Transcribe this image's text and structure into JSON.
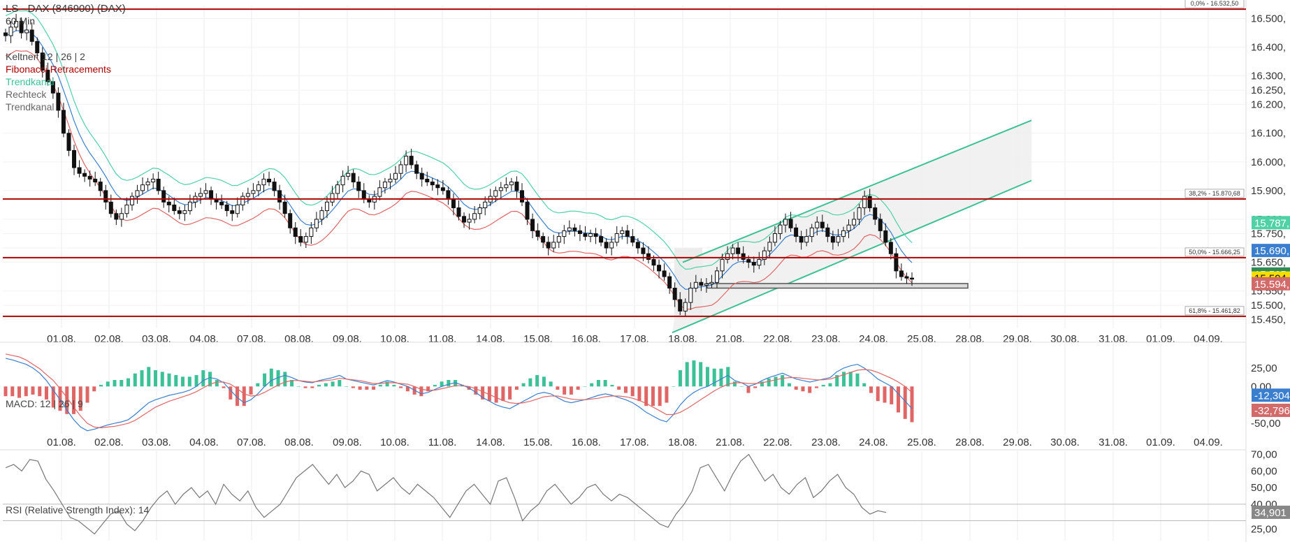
{
  "chart_data": [
    {
      "type": "candlestick",
      "title": "LS - DAX (846900) (DAX)",
      "interval": "60 Min",
      "ylim": [
        15420,
        16545
      ],
      "y_ticks": [
        "16.500,",
        "16.400,",
        "16.300,",
        "16.250,",
        "16.200,",
        "16.100,",
        "16.000,",
        "15.900,",
        "15.800,",
        "15.750,",
        "15.700,",
        "15.650,",
        "15.550,",
        "15.500,",
        "15.450,"
      ],
      "y_tick_values": [
        16500,
        16400,
        16300,
        16250,
        16200,
        16100,
        16000,
        15900,
        15800,
        15750,
        15700,
        15650,
        15550,
        15500,
        15450
      ],
      "x_ticks": [
        "01.08.",
        "02.08.",
        "03.08.",
        "04.08.",
        "07.08.",
        "08.08.",
        "09.08.",
        "10.08.",
        "11.08.",
        "14.08.",
        "15.08.",
        "16.08.",
        "17.08.",
        "18.08.",
        "21.08.",
        "22.08.",
        "23.08.",
        "24.08.",
        "25.08.",
        "28.08.",
        "29.08.",
        "30.08.",
        "31.08.",
        "01.09.",
        "04.09."
      ],
      "legend": [
        {
          "label": "Keltner: 12 | 26 | 2",
          "color": "#444444"
        },
        {
          "label": "Fibonacci Retracements",
          "color": "#b00000"
        },
        {
          "label": "Trendkanal",
          "color": "#3cc196"
        },
        {
          "label": "Rechteck",
          "color": "#666666"
        },
        {
          "label": "Trendkanal",
          "color": "#666666"
        }
      ],
      "fibonacci": [
        {
          "label": "0,0% - 16.532,50",
          "value": 16532.5
        },
        {
          "label": "38,2% - 15.870,68",
          "value": 15870.68
        },
        {
          "label": "50,0% - 15.666,25",
          "value": 15666.25
        },
        {
          "label": "61,8% - 15.461,82",
          "value": 15461.82
        }
      ],
      "price_badges": [
        {
          "label": "15.787,",
          "value": 15787,
          "color": "#4fd1a5"
        },
        {
          "label": "15.690,",
          "value": 15690,
          "color": "#3a7fcf"
        },
        {
          "label": "15.595,",
          "value": 15608,
          "color": "#2e8b57"
        },
        {
          "label": "15.594,",
          "value": 15594,
          "color": "#f5dd00"
        },
        {
          "label": "15.594,",
          "value": 15574,
          "color": "#d36a6a"
        }
      ],
      "trend_channel": {
        "upper": [
          [
            "18.08.",
            15650
          ],
          [
            "29.08.",
            16145
          ]
        ],
        "lower": [
          [
            "18.08.",
            15405
          ],
          [
            "29.08.",
            15935
          ]
        ]
      },
      "rectangle": {
        "from": "18.08.",
        "to": "28.08.",
        "y_top": 15576,
        "y_bottom": 15560
      },
      "close_series": [
        16440,
        16470,
        16490,
        16450,
        16460,
        16420,
        16380,
        16320,
        16280,
        16240,
        16180,
        16100,
        16040,
        15980,
        15960,
        15950,
        15940,
        15930,
        15900,
        15860,
        15820,
        15800,
        15820,
        15850,
        15880,
        15900,
        15920,
        15930,
        15940,
        15900,
        15860,
        15850,
        15830,
        15820,
        15830,
        15860,
        15880,
        15890,
        15900,
        15870,
        15860,
        15850,
        15830,
        15820,
        15850,
        15880,
        15890,
        15900,
        15920,
        15940,
        15930,
        15900,
        15860,
        15820,
        15770,
        15740,
        15720,
        15740,
        15770,
        15800,
        15830,
        15860,
        15890,
        15920,
        15950,
        15960,
        15930,
        15900,
        15870,
        15860,
        15880,
        15910,
        15930,
        15940,
        15960,
        15990,
        16020,
        15990,
        15960,
        15940,
        15930,
        15920,
        15910,
        15900,
        15870,
        15840,
        15810,
        15790,
        15800,
        15820,
        15840,
        15860,
        15880,
        15900,
        15910,
        15920,
        15930,
        15900,
        15860,
        15800,
        15760,
        15740,
        15720,
        15700,
        15720,
        15740,
        15760,
        15770,
        15760,
        15750,
        15740,
        15750,
        15740,
        15720,
        15700,
        15720,
        15750,
        15760,
        15740,
        15720,
        15700,
        15680,
        15660,
        15640,
        15620,
        15600,
        15560,
        15520,
        15480,
        15510,
        15560,
        15580,
        15570,
        15575,
        15580,
        15620,
        15660,
        15680,
        15700,
        15680,
        15660,
        15650,
        15640,
        15660,
        15690,
        15720,
        15750,
        15780,
        15800,
        15770,
        15740,
        15720,
        15740,
        15770,
        15790,
        15770,
        15740,
        15720,
        15740,
        15760,
        15780,
        15800,
        15840,
        15880,
        15840,
        15800,
        15760,
        15720,
        15680,
        15620,
        15600,
        15595,
        15594
      ],
      "candle_color": "#111111"
    },
    {
      "type": "line",
      "title": "MACD: 12 | 26 | 9",
      "ylim": [
        -65,
        58
      ],
      "y_ticks": [
        "25,00",
        "0,00",
        "-50,00"
      ],
      "y_tick_values": [
        25,
        0,
        -50
      ],
      "x_ticks": [
        "01.08.",
        "02.08.",
        "03.08.",
        "04.08.",
        "07.08.",
        "08.08.",
        "09.08.",
        "10.08.",
        "11.08.",
        "14.08.",
        "15.08.",
        "16.08.",
        "17.08.",
        "18.08.",
        "21.08.",
        "22.08.",
        "23.08.",
        "24.08.",
        "25.08.",
        "28.08.",
        "29.08.",
        "30.08.",
        "31.08.",
        "01.09.",
        "04.09."
      ],
      "badges": [
        {
          "label": "-12,304",
          "value": -12.3,
          "color": "#3a7fcf"
        },
        {
          "label": "-32,796",
          "value": -32.8,
          "color": "#d36a6a"
        }
      ],
      "macd_series": [
        38,
        36,
        33,
        30,
        25,
        18,
        8,
        -5,
        -18,
        -32,
        -45,
        -55,
        -60,
        -58,
        -55,
        -52,
        -50,
        -48,
        -45,
        -38,
        -30,
        -22,
        -18,
        -15,
        -12,
        -10,
        -8,
        -5,
        0,
        8,
        12,
        10,
        5,
        -5,
        -15,
        -22,
        -18,
        -10,
        0,
        8,
        12,
        15,
        12,
        8,
        6,
        5,
        8,
        10,
        12,
        15,
        10,
        8,
        6,
        4,
        2,
        5,
        8,
        6,
        3,
        0,
        -5,
        -10,
        -8,
        -4,
        0,
        3,
        5,
        2,
        -2,
        -8,
        -15,
        -20,
        -25,
        -28,
        -30,
        -25,
        -20,
        -15,
        -10,
        -8,
        -10,
        -15,
        -20,
        -22,
        -20,
        -18,
        -15,
        -12,
        -10,
        -12,
        -15,
        -18,
        -22,
        -28,
        -35,
        -40,
        -45,
        -48,
        -38,
        -25,
        -15,
        -8,
        -3,
        0,
        5,
        10,
        15,
        8,
        5,
        0,
        3,
        8,
        12,
        15,
        18,
        14,
        10,
        8,
        6,
        8,
        10,
        12,
        20,
        25,
        28,
        30,
        25,
        18,
        10,
        5,
        0,
        -10,
        -20,
        -30
      ],
      "signal_series": [
        44,
        42,
        40,
        36,
        30,
        24,
        16,
        8,
        -3,
        -15,
        -28,
        -40,
        -50,
        -55,
        -56,
        -55,
        -54,
        -52,
        -50,
        -46,
        -40,
        -34,
        -28,
        -24,
        -20,
        -17,
        -14,
        -11,
        -7,
        -2,
        3,
        6,
        6,
        3,
        -3,
        -10,
        -13,
        -12,
        -8,
        -3,
        2,
        6,
        8,
        8,
        7,
        6,
        7,
        8,
        9,
        11,
        10,
        9,
        8,
        6,
        4,
        4,
        5,
        5,
        4,
        3,
        0,
        -4,
        -5,
        -5,
        -3,
        -1,
        1,
        1,
        0,
        -3,
        -7,
        -11,
        -15,
        -19,
        -22,
        -23,
        -22,
        -20,
        -17,
        -14,
        -13,
        -13,
        -15,
        -17,
        -18,
        -18,
        -17,
        -16,
        -14,
        -13,
        -13,
        -14,
        -16,
        -19,
        -23,
        -28,
        -33,
        -38,
        -38,
        -35,
        -30,
        -24,
        -18,
        -12,
        -6,
        -1,
        3,
        5,
        5,
        4,
        4,
        5,
        7,
        9,
        11,
        12,
        12,
        11,
        10,
        9,
        9,
        10,
        13,
        16,
        19,
        22,
        23,
        22,
        19,
        15,
        11,
        6,
        0,
        -8
      ],
      "histogram_colors": {
        "positive": "#3cc196",
        "negative": "#e06666"
      }
    },
    {
      "type": "line",
      "title": "RSI (Relative Strength Index): 14",
      "ylim": [
        18,
        72
      ],
      "y_ticks": [
        "70,00",
        "60,00",
        "50,00",
        "40,00",
        "25,00"
      ],
      "y_tick_values": [
        70,
        60,
        50,
        40,
        25
      ],
      "x_ticks": [
        "01.08.",
        "02.08.",
        "03.08.",
        "04.08.",
        "07.08.",
        "08.08.",
        "09.08.",
        "10.08.",
        "11.08.",
        "14.08.",
        "15.08.",
        "16.08.",
        "17.08.",
        "18.08.",
        "21.08.",
        "22.08.",
        "23.08.",
        "24.08.",
        "25.08.",
        "28.08.",
        "29.08.",
        "30.08.",
        "31.08.",
        "01.09.",
        "04.09."
      ],
      "badge": {
        "label": "34,901",
        "value": 34.9,
        "color": "#888888"
      },
      "levels": [
        40,
        30
      ],
      "rsi_series": [
        62,
        64,
        60,
        67,
        66,
        55,
        48,
        40,
        32,
        30,
        26,
        22,
        28,
        34,
        36,
        28,
        24,
        30,
        38,
        44,
        48,
        40,
        46,
        50,
        44,
        48,
        40,
        52,
        46,
        42,
        48,
        38,
        32,
        36,
        40,
        48,
        56,
        60,
        64,
        58,
        52,
        58,
        50,
        54,
        60,
        58,
        48,
        52,
        56,
        50,
        46,
        52,
        48,
        44,
        38,
        32,
        40,
        48,
        52,
        46,
        40,
        54,
        56,
        44,
        30,
        36,
        40,
        48,
        52,
        46,
        40,
        44,
        50,
        52,
        46,
        42,
        46,
        44,
        40,
        36,
        32,
        28,
        26,
        34,
        40,
        48,
        62,
        64,
        56,
        48,
        58,
        66,
        70,
        62,
        54,
        58,
        50,
        46,
        52,
        56,
        44,
        48,
        54,
        58,
        50,
        46,
        38,
        34,
        36,
        35
      ]
    }
  ]
}
